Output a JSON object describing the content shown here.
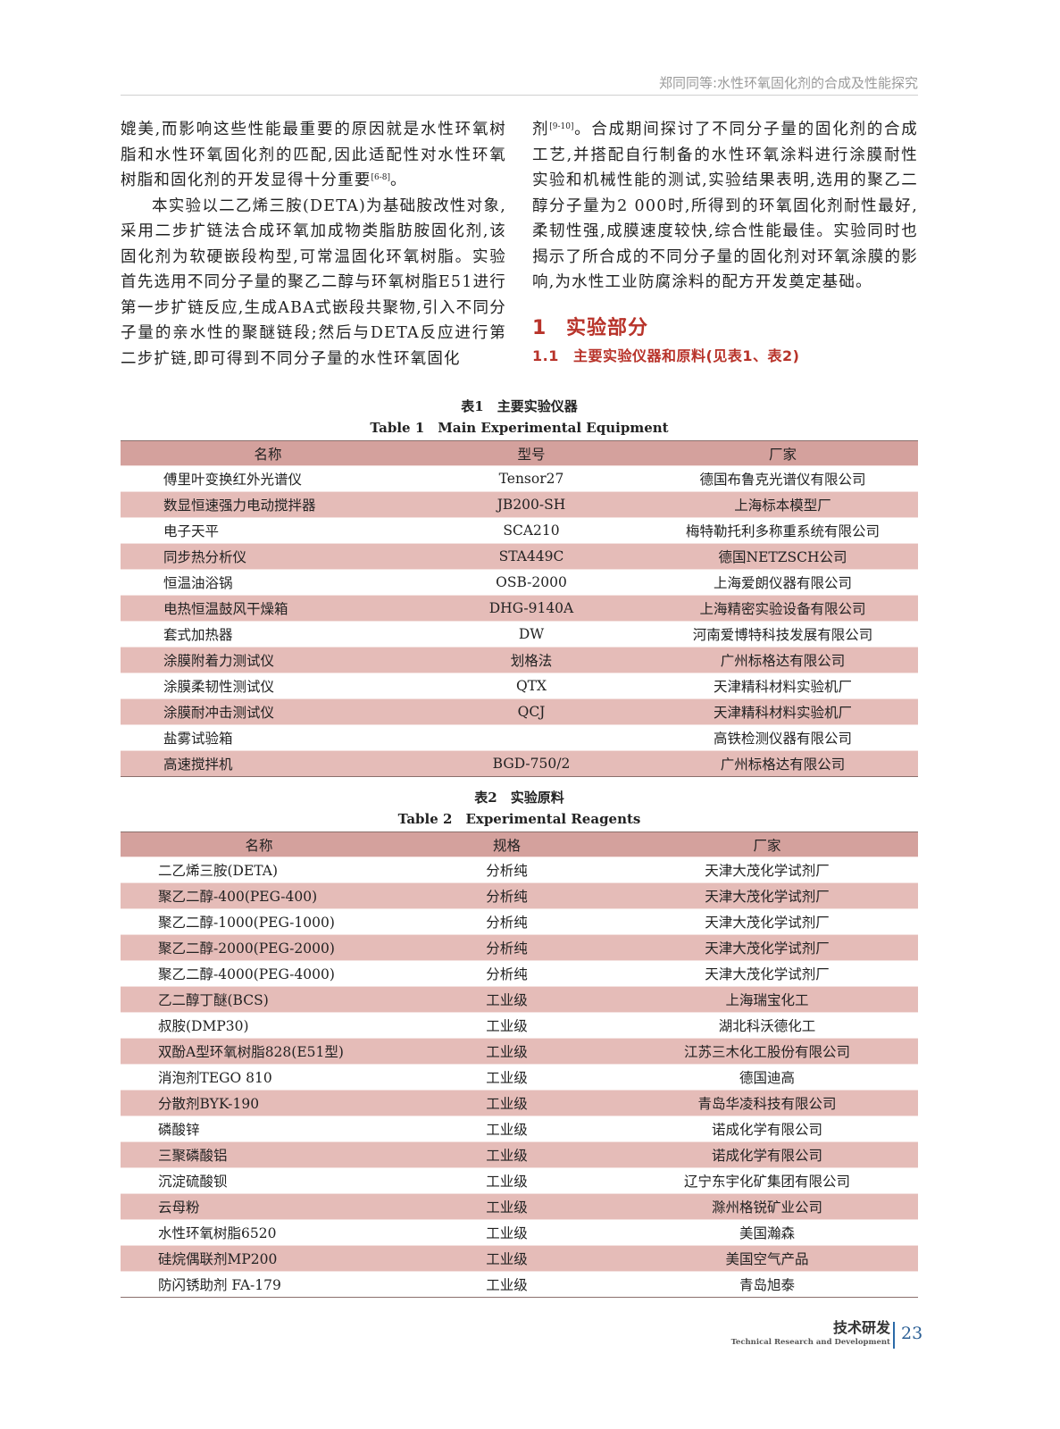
{
  "header": {
    "running_title": "郑同同等:水性环氧固化剂的合成及性能探究"
  },
  "left": {
    "p1_a": "媲美,而影响这些性能最重要的原因就是水性环氧树脂和水性环氧固化剂的匹配,因此适配性对水性环氧树脂和固化剂的开发显得十分重要",
    "p1_ref": "[6-8]",
    "p1_b": "。",
    "p2": "本实验以二乙烯三胺(DETA)为基础胺改性对象,采用二步扩链法合成环氧加成物类脂肪胺固化剂,该固化剂为软硬嵌段构型,可常温固化环氧树脂。实验首先选用不同分子量的聚乙二醇与环氧树脂E51进行第一步扩链反应,生成ABA式嵌段共聚物,引入不同分子量的亲水性的聚醚链段;然后与DETA反应进行第二步扩链,即可得到不同分子量的水性环氧固化"
  },
  "right": {
    "p1_a": "剂",
    "p1_ref": "[9-10]",
    "p1_b": "。合成期间探讨了不同分子量的固化剂的合成工艺,并搭配自行制备的水性环氧涂料进行涂膜耐性实验和机械性能的测试,实验结果表明,选用的聚乙二醇分子量为2 000时,所得到的环氧固化剂耐性最好,柔韧性强,成膜速度较快,综合性能最佳。实验同时也揭示了所合成的不同分子量的固化剂对环氧涂膜的影响,为水性工业防腐涂料的配方开发奠定基础。",
    "section_num": "1",
    "section_title": "实验部分",
    "subsection_num": "1.1",
    "subsection_title": "主要实验仪器和原料(见表1、表2)"
  },
  "table1": {
    "caption_cn": "表1　主要实验仪器",
    "caption_en": "Table 1　Main Experimental Equipment",
    "headers": [
      "名称",
      "型号",
      "厂家"
    ],
    "rows": [
      [
        "傅里叶变换红外光谱仪",
        "Tensor27",
        "德国布鲁克光谱仪有限公司"
      ],
      [
        "数显恒速强力电动搅拌器",
        "JB200-SH",
        "上海标本模型厂"
      ],
      [
        "电子天平",
        "SCA210",
        "梅特勒托利多称重系统有限公司"
      ],
      [
        "同步热分析仪",
        "STA449C",
        "德国NETZSCH公司"
      ],
      [
        "恒温油浴锅",
        "OSB-2000",
        "上海爱朗仪器有限公司"
      ],
      [
        "电热恒温鼓风干燥箱",
        "DHG-9140A",
        "上海精密实验设备有限公司"
      ],
      [
        "套式加热器",
        "DW",
        "河南爱博特科技发展有限公司"
      ],
      [
        "涂膜附着力测试仪",
        "划格法",
        "广州标格达有限公司"
      ],
      [
        "涂膜柔韧性测试仪",
        "QTX",
        "天津精科材料实验机厂"
      ],
      [
        "涂膜耐冲击测试仪",
        "QCJ",
        "天津精科材料实验机厂"
      ],
      [
        "盐雾试验箱",
        "",
        "高铁检测仪器有限公司"
      ],
      [
        "高速搅拌机",
        "BGD-750/2",
        "广州标格达有限公司"
      ]
    ]
  },
  "table2": {
    "caption_cn": "表2　实验原料",
    "caption_en": "Table 2　Experimental Reagents",
    "headers": [
      "名称",
      "规格",
      "厂家"
    ],
    "rows": [
      [
        "二乙烯三胺(DETA)",
        "分析纯",
        "天津大茂化学试剂厂"
      ],
      [
        "聚乙二醇-400(PEG-400)",
        "分析纯",
        "天津大茂化学试剂厂"
      ],
      [
        "聚乙二醇-1000(PEG-1000)",
        "分析纯",
        "天津大茂化学试剂厂"
      ],
      [
        "聚乙二醇-2000(PEG-2000)",
        "分析纯",
        "天津大茂化学试剂厂"
      ],
      [
        "聚乙二醇-4000(PEG-4000)",
        "分析纯",
        "天津大茂化学试剂厂"
      ],
      [
        "乙二醇丁醚(BCS)",
        "工业级",
        "上海瑞宝化工"
      ],
      [
        "叔胺(DMP30)",
        "工业级",
        "湖北科沃德化工"
      ],
      [
        "双酚A型环氧树脂828(E51型)",
        "工业级",
        "江苏三木化工股份有限公司"
      ],
      [
        "消泡剂TEGO 810",
        "工业级",
        "德国迪高"
      ],
      [
        "分散剂BYK-190",
        "工业级",
        "青岛华凌科技有限公司"
      ],
      [
        "磷酸锌",
        "工业级",
        "诺成化学有限公司"
      ],
      [
        "三聚磷酸铝",
        "工业级",
        "诺成化学有限公司"
      ],
      [
        "沉淀硫酸钡",
        "工业级",
        "辽宁东宇化矿集团有限公司"
      ],
      [
        "云母粉",
        "工业级",
        "滁州格锐矿业公司"
      ],
      [
        "水性环氧树脂6520",
        "工业级",
        "美国瀚森"
      ],
      [
        "硅烷偶联剂MP200",
        "工业级",
        "美国空气产品"
      ],
      [
        "防闪锈助剂 FA-179",
        "工业级",
        "青岛旭泰"
      ]
    ]
  },
  "footer": {
    "section_cn": "技术研发",
    "section_en": "Technical Research and Development",
    "page": "23"
  },
  "colors": {
    "accent_red": "#b8332a",
    "table_header": "#d4a19d",
    "table_stripe": "#e5bcb8",
    "page_blue": "#2b6aa8"
  }
}
